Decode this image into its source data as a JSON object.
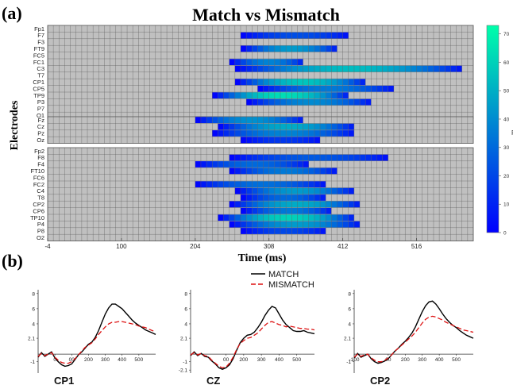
{
  "panel_a_label": "(a)",
  "panel_b_label": "(b)",
  "chart_data": [
    {
      "type": "heatmap",
      "title": "Match vs Mismatch",
      "xlabel": "Time (ms)",
      "ylabel": "Electrodes",
      "xlim": [
        -4,
        596
      ],
      "x_ticks": [
        -4,
        100,
        204,
        308,
        412,
        516
      ],
      "bin_ms": 8,
      "colorbar": {
        "label": "F",
        "ticks": [
          0,
          10,
          20,
          30,
          40,
          50,
          60,
          70
        ],
        "range": [
          0,
          73
        ],
        "colors": [
          "#0000ff",
          "#00ffaa"
        ]
      },
      "grid": true,
      "background_color": "#c0c0c0",
      "groups": [
        [
          "Fp1",
          "F7",
          "F3",
          "FT9",
          "FC5",
          "FC1",
          "C3",
          "T7",
          "CP1",
          "CP5",
          "TP9",
          "P3",
          "P7",
          "O1"
        ],
        [
          "Fz",
          "Cz",
          "Pz",
          "Oz"
        ],
        [
          "Fp2",
          "F8",
          "F4",
          "FT10",
          "FC6",
          "FC2",
          "C4",
          "T8",
          "CP2",
          "CP6",
          "TP10",
          "P4",
          "P8",
          "O2"
        ]
      ],
      "significant": [
        {
          "electrode": "F7",
          "start": 268,
          "end": 420,
          "peak": 22
        },
        {
          "electrode": "FT9",
          "start": 268,
          "end": 404,
          "peak": 45
        },
        {
          "electrode": "FC1",
          "start": 252,
          "end": 356,
          "peak": 38
        },
        {
          "electrode": "C3",
          "start": 260,
          "end": 580,
          "peak": 55
        },
        {
          "electrode": "CP1",
          "start": 260,
          "end": 444,
          "peak": 58
        },
        {
          "electrode": "CP5",
          "start": 292,
          "end": 484,
          "peak": 35
        },
        {
          "electrode": "TP9",
          "start": 228,
          "end": 420,
          "peak": 65
        },
        {
          "electrode": "P3",
          "start": 276,
          "end": 452,
          "peak": 40
        },
        {
          "electrode": "Fz",
          "start": 204,
          "end": 356,
          "peak": 42
        },
        {
          "electrode": "Cz",
          "start": 236,
          "end": 428,
          "peak": 50
        },
        {
          "electrode": "Pz",
          "start": 228,
          "end": 428,
          "peak": 38
        },
        {
          "electrode": "Oz",
          "start": 268,
          "end": 380,
          "peak": 15
        },
        {
          "electrode": "F8",
          "start": 252,
          "end": 476,
          "peak": 25
        },
        {
          "electrode": "F4",
          "start": 204,
          "end": 364,
          "peak": 30
        },
        {
          "electrode": "FT10",
          "start": 252,
          "end": 404,
          "peak": 35
        },
        {
          "electrode": "FC2",
          "start": 204,
          "end": 388,
          "peak": 32
        },
        {
          "electrode": "C4",
          "start": 260,
          "end": 428,
          "peak": 45
        },
        {
          "electrode": "T8",
          "start": 268,
          "end": 388,
          "peak": 30
        },
        {
          "electrode": "CP2",
          "start": 252,
          "end": 436,
          "peak": 50
        },
        {
          "electrode": "CP6",
          "start": 268,
          "end": 396,
          "peak": 35
        },
        {
          "electrode": "TP10",
          "start": 236,
          "end": 428,
          "peak": 62
        },
        {
          "electrode": "P4",
          "start": 252,
          "end": 436,
          "peak": 45
        },
        {
          "electrode": "P8",
          "start": 268,
          "end": 388,
          "peak": 20
        }
      ]
    },
    {
      "type": "line",
      "legend": [
        "MATCH",
        "MISMATCH"
      ],
      "legend_position": "top-center",
      "series_styles": [
        {
          "name": "MATCH",
          "color": "#000000",
          "dash": "none"
        },
        {
          "name": "MISMATCH",
          "color": "#dd1111",
          "dash": "6 3"
        }
      ],
      "subplots": [
        {
          "label": "CP1",
          "y_ticks": [
            "8",
            "6",
            "4",
            "2.1",
            "-1"
          ],
          "x_ticks": [
            "0",
            "00",
            "200",
            "300",
            "400",
            "500"
          ],
          "ylim": [
            -2.5,
            8.5
          ],
          "xlim": [
            -100,
            600
          ],
          "series": [
            {
              "name": "MATCH",
              "x": [
                -100,
                -80,
                -60,
                -40,
                -20,
                0,
                20,
                40,
                60,
                80,
                100,
                120,
                140,
                160,
                180,
                200,
                220,
                240,
                260,
                280,
                300,
                320,
                340,
                360,
                380,
                400,
                420,
                440,
                460,
                480,
                500,
                520,
                540,
                560,
                580,
                600
              ],
              "y": [
                -0.4,
                0.2,
                -0.3,
                0.0,
                0.3,
                -0.5,
                -1.0,
                -1.4,
                -1.6,
                -1.5,
                -1.3,
                -0.7,
                -0.1,
                0.3,
                0.8,
                1.3,
                1.6,
                2.2,
                3.1,
                4.2,
                5.3,
                6.1,
                6.6,
                6.6,
                6.3,
                6.0,
                5.5,
                5.0,
                4.5,
                4.1,
                3.8,
                3.5,
                3.2,
                3.0,
                2.8,
                2.6
              ]
            },
            {
              "name": "MISMATCH",
              "x": [
                -100,
                -80,
                -60,
                -40,
                -20,
                0,
                20,
                40,
                60,
                80,
                100,
                120,
                140,
                160,
                180,
                200,
                220,
                240,
                260,
                280,
                300,
                320,
                340,
                360,
                380,
                400,
                420,
                440,
                460,
                480,
                500,
                520,
                540,
                560,
                580,
                600
              ],
              "y": [
                -0.3,
                0.1,
                -0.2,
                0.0,
                0.2,
                -0.4,
                -0.8,
                -1.1,
                -1.2,
                -1.2,
                -1.0,
                -0.6,
                -0.1,
                0.4,
                0.9,
                1.2,
                1.5,
                2.0,
                2.6,
                3.1,
                3.6,
                4.0,
                4.2,
                4.2,
                4.3,
                4.3,
                4.2,
                4.1,
                4.0,
                3.9,
                3.7,
                3.6,
                3.5,
                3.3,
                3.1,
                3.0
              ]
            }
          ]
        },
        {
          "label": "CZ",
          "y_ticks": [
            "8",
            "6",
            "4",
            "2.1",
            "-1",
            "-2.1"
          ],
          "x_ticks": [
            "00",
            "200",
            "300",
            "400",
            "500"
          ],
          "ylim": [
            -2.5,
            8.5
          ],
          "xlim": [
            -100,
            600
          ],
          "series": [
            {
              "name": "MATCH",
              "x": [
                -100,
                -80,
                -60,
                -40,
                -20,
                0,
                20,
                40,
                60,
                80,
                100,
                120,
                140,
                160,
                180,
                200,
                220,
                240,
                260,
                280,
                300,
                320,
                340,
                360,
                380,
                400,
                420,
                440,
                460,
                480,
                500,
                520,
                540,
                560,
                580,
                600
              ],
              "y": [
                -0.2,
                0.3,
                -0.2,
                0.1,
                -0.3,
                -0.4,
                -0.9,
                -1.3,
                -1.8,
                -2.0,
                -1.8,
                -1.4,
                -0.6,
                0.5,
                1.5,
                2.1,
                2.5,
                2.6,
                2.9,
                3.5,
                4.2,
                5.1,
                5.8,
                6.3,
                6.1,
                5.3,
                4.5,
                3.9,
                3.5,
                3.1,
                3.0,
                3.0,
                3.1,
                2.9,
                2.8,
                2.7
              ]
            },
            {
              "name": "MISMATCH",
              "x": [
                -100,
                -80,
                -60,
                -40,
                -20,
                0,
                20,
                40,
                60,
                80,
                100,
                120,
                140,
                160,
                180,
                200,
                220,
                240,
                260,
                280,
                300,
                320,
                340,
                360,
                380,
                400,
                420,
                440,
                460,
                480,
                500,
                520,
                540,
                560,
                580,
                600
              ],
              "y": [
                -0.1,
                0.2,
                -0.1,
                0.1,
                -0.2,
                -0.3,
                -0.8,
                -1.2,
                -1.6,
                -1.8,
                -1.7,
                -1.2,
                -0.4,
                0.6,
                1.4,
                1.8,
                2.1,
                2.2,
                2.5,
                2.8,
                3.3,
                3.8,
                4.2,
                4.3,
                4.1,
                3.9,
                3.8,
                3.6,
                3.7,
                3.6,
                3.5,
                3.4,
                3.4,
                3.3,
                3.3,
                3.2
              ]
            }
          ]
        },
        {
          "label": "CP2",
          "y_ticks": [
            "8",
            "6",
            "4",
            "2.1",
            "-1"
          ],
          "x_ticks": [
            "-100",
            "00",
            "200",
            "300",
            "400",
            "500"
          ],
          "ylim": [
            -2.5,
            8.5
          ],
          "xlim": [
            -100,
            600
          ],
          "series": [
            {
              "name": "MATCH",
              "x": [
                -100,
                -80,
                -60,
                -40,
                -20,
                0,
                20,
                40,
                60,
                80,
                100,
                120,
                140,
                160,
                180,
                200,
                220,
                240,
                260,
                280,
                300,
                320,
                340,
                360,
                380,
                400,
                420,
                440,
                460,
                480,
                500,
                520,
                540,
                560,
                580,
                600
              ],
              "y": [
                -0.5,
                0.1,
                -0.4,
                -0.2,
                0.0,
                -0.6,
                -1.0,
                -1.2,
                -1.1,
                -0.9,
                -0.6,
                -0.1,
                0.4,
                0.8,
                1.3,
                1.7,
                2.2,
                2.8,
                3.6,
                4.6,
                5.6,
                6.4,
                6.9,
                7.0,
                6.6,
                6.0,
                5.3,
                4.7,
                4.2,
                3.8,
                3.5,
                3.1,
                2.8,
                2.5,
                2.3,
                2.1
              ]
            },
            {
              "name": "MISMATCH",
              "x": [
                -100,
                -80,
                -60,
                -40,
                -20,
                0,
                20,
                40,
                60,
                80,
                100,
                120,
                140,
                160,
                180,
                200,
                220,
                240,
                260,
                280,
                300,
                320,
                340,
                360,
                380,
                400,
                420,
                440,
                460,
                480,
                500,
                520,
                540,
                560,
                580,
                600
              ],
              "y": [
                -0.4,
                0.0,
                -0.3,
                -0.1,
                0.0,
                -0.5,
                -0.8,
                -1.0,
                -1.0,
                -0.8,
                -0.5,
                -0.1,
                0.4,
                0.8,
                1.2,
                1.6,
                2.0,
                2.4,
                2.9,
                3.5,
                4.1,
                4.6,
                4.9,
                5.0,
                4.9,
                4.7,
                4.5,
                4.2,
                4.0,
                3.8,
                3.6,
                3.4,
                3.2,
                3.1,
                3.0,
                2.9
              ]
            }
          ]
        }
      ]
    }
  ]
}
